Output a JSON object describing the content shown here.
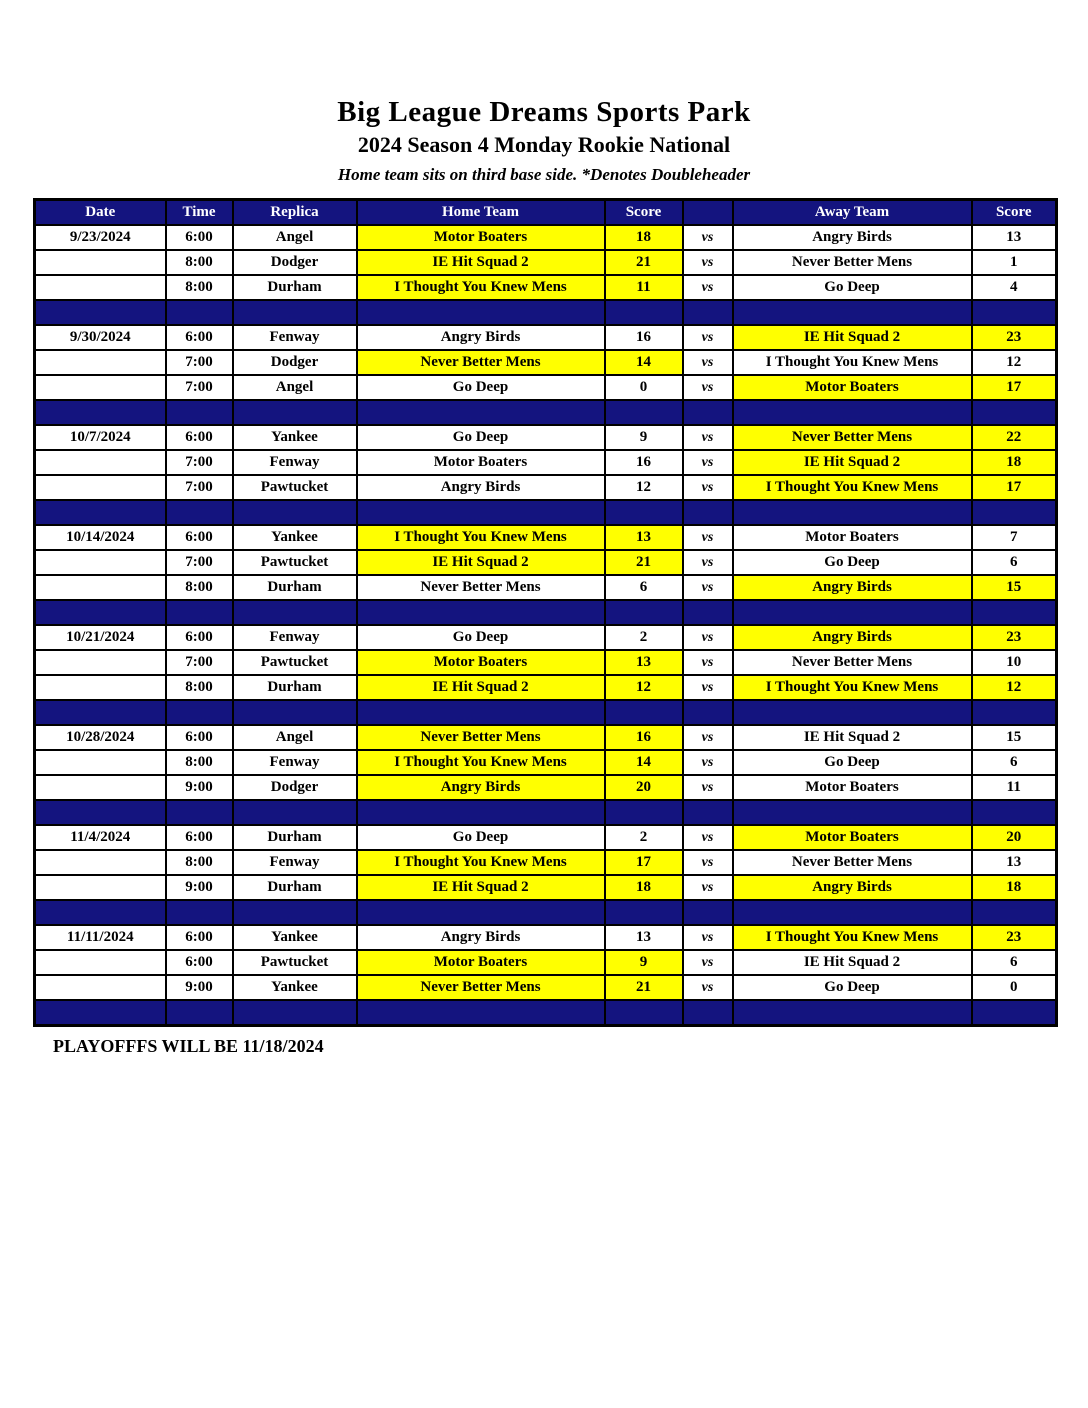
{
  "title": "Big League Dreams Sports Park",
  "subtitle": "2024 Season 4 Monday Rookie National",
  "note": "Home team sits on third base side.  *Denotes Doubleheader",
  "footer": "PLAYOFFFS WILL BE 11/18/2024",
  "colors": {
    "header_navy": "#14147F",
    "winner_highlight": "#FFFF00",
    "grid_border": "#000000",
    "header_text": "#FFFFFF"
  },
  "table": {
    "headers": [
      "Date",
      "Time",
      "Replica",
      "Home Team",
      "Score",
      "",
      "Away Team",
      "Score"
    ],
    "vs_label": "vs",
    "weeks": [
      {
        "date": "9/23/2024",
        "games": [
          {
            "time": "6:00",
            "replica": "Angel",
            "home": "Motor Boaters",
            "home_score": "18",
            "away": "Angry Birds",
            "away_score": "13",
            "home_win": true,
            "away_win": false
          },
          {
            "time": "8:00",
            "replica": "Dodger",
            "home": "IE Hit Squad 2",
            "home_score": "21",
            "away": "Never Better Mens",
            "away_score": "1",
            "home_win": true,
            "away_win": false
          },
          {
            "time": "8:00",
            "replica": "Durham",
            "home": "I Thought You Knew Mens",
            "home_score": "11",
            "away": "Go Deep",
            "away_score": "4",
            "home_win": true,
            "away_win": false
          }
        ]
      },
      {
        "date": "9/30/2024",
        "games": [
          {
            "time": "6:00",
            "replica": "Fenway",
            "home": "Angry Birds",
            "home_score": "16",
            "away": "IE Hit Squad 2",
            "away_score": "23",
            "home_win": false,
            "away_win": true
          },
          {
            "time": "7:00",
            "replica": "Dodger",
            "home": "Never Better Mens",
            "home_score": "14",
            "away": "I Thought You Knew Mens",
            "away_score": "12",
            "home_win": true,
            "away_win": false
          },
          {
            "time": "7:00",
            "replica": "Angel",
            "home": "Go Deep",
            "home_score": "0",
            "away": "Motor Boaters",
            "away_score": "17",
            "home_win": false,
            "away_win": true
          }
        ]
      },
      {
        "date": "10/7/2024",
        "games": [
          {
            "time": "6:00",
            "replica": "Yankee",
            "home": "Go Deep",
            "home_score": "9",
            "away": "Never Better Mens",
            "away_score": "22",
            "home_win": false,
            "away_win": true
          },
          {
            "time": "7:00",
            "replica": "Fenway",
            "home": "Motor Boaters",
            "home_score": "16",
            "away": "IE Hit Squad 2",
            "away_score": "18",
            "home_win": false,
            "away_win": true
          },
          {
            "time": "7:00",
            "replica": "Pawtucket",
            "home": "Angry Birds",
            "home_score": "12",
            "away": "I Thought You Knew Mens",
            "away_score": "17",
            "home_win": false,
            "away_win": true
          }
        ]
      },
      {
        "date": "10/14/2024",
        "games": [
          {
            "time": "6:00",
            "replica": "Yankee",
            "home": "I Thought You Knew Mens",
            "home_score": "13",
            "away": "Motor Boaters",
            "away_score": "7",
            "home_win": true,
            "away_win": false
          },
          {
            "time": "7:00",
            "replica": "Pawtucket",
            "home": "IE Hit Squad 2",
            "home_score": "21",
            "away": "Go Deep",
            "away_score": "6",
            "home_win": true,
            "away_win": false
          },
          {
            "time": "8:00",
            "replica": "Durham",
            "home": "Never Better Mens",
            "home_score": "6",
            "away": "Angry Birds",
            "away_score": "15",
            "home_win": false,
            "away_win": true
          }
        ]
      },
      {
        "date": "10/21/2024",
        "games": [
          {
            "time": "6:00",
            "replica": "Fenway",
            "home": "Go Deep",
            "home_score": "2",
            "away": "Angry Birds",
            "away_score": "23",
            "home_win": false,
            "away_win": true
          },
          {
            "time": "7:00",
            "replica": "Pawtucket",
            "home": "Motor Boaters",
            "home_score": "13",
            "away": "Never Better Mens",
            "away_score": "10",
            "home_win": true,
            "away_win": false
          },
          {
            "time": "8:00",
            "replica": "Durham",
            "home": "IE Hit Squad 2",
            "home_score": "12",
            "away": "I Thought You Knew Mens",
            "away_score": "12",
            "home_win": true,
            "away_win": true
          }
        ]
      },
      {
        "date": "10/28/2024",
        "games": [
          {
            "time": "6:00",
            "replica": "Angel",
            "home": "Never Better Mens",
            "home_score": "16",
            "away": "IE Hit Squad 2",
            "away_score": "15",
            "home_win": true,
            "away_win": false
          },
          {
            "time": "8:00",
            "replica": "Fenway",
            "home": "I Thought You Knew Mens",
            "home_score": "14",
            "away": "Go Deep",
            "away_score": "6",
            "home_win": true,
            "away_win": false
          },
          {
            "time": "9:00",
            "replica": "Dodger",
            "home": "Angry Birds",
            "home_score": "20",
            "away": "Motor Boaters",
            "away_score": "11",
            "home_win": true,
            "away_win": false
          }
        ]
      },
      {
        "date": "11/4/2024",
        "games": [
          {
            "time": "6:00",
            "replica": "Durham",
            "home": "Go Deep",
            "home_score": "2",
            "away": "Motor Boaters",
            "away_score": "20",
            "home_win": false,
            "away_win": true
          },
          {
            "time": "8:00",
            "replica": "Fenway",
            "home": "I Thought You Knew Mens",
            "home_score": "17",
            "away": "Never Better Mens",
            "away_score": "13",
            "home_win": true,
            "away_win": false
          },
          {
            "time": "9:00",
            "replica": "Durham",
            "home": "IE Hit Squad 2",
            "home_score": "18",
            "away": "Angry Birds",
            "away_score": "18",
            "home_win": true,
            "away_win": true
          }
        ]
      },
      {
        "date": "11/11/2024",
        "games": [
          {
            "time": "6:00",
            "replica": "Yankee",
            "home": "Angry Birds",
            "home_score": "13",
            "away": "I Thought You Knew Mens",
            "away_score": "23",
            "home_win": false,
            "away_win": true
          },
          {
            "time": "6:00",
            "replica": "Pawtucket",
            "home": "Motor Boaters",
            "home_score": "9",
            "away": "IE Hit Squad 2",
            "away_score": "6",
            "home_win": true,
            "away_win": false
          },
          {
            "time": "9:00",
            "replica": "Yankee",
            "home": "Never Better Mens",
            "home_score": "21",
            "away": "Go Deep",
            "away_score": "0",
            "home_win": true,
            "away_win": false
          }
        ]
      }
    ]
  }
}
